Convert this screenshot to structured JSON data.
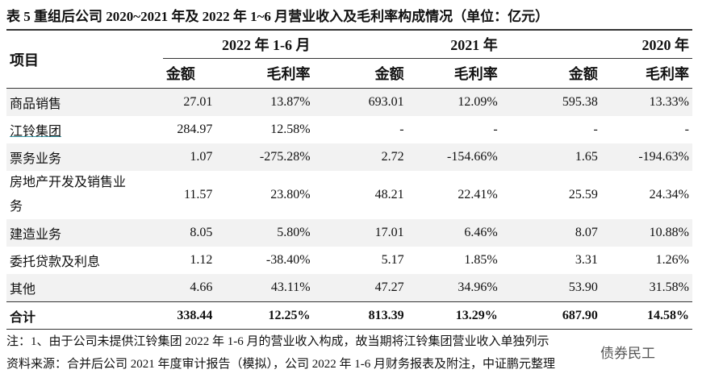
{
  "title": "表 5 重组后公司 2020~2021 年及 2022 年 1~6 月营业收入及毛利率构成情况（单位：亿元）",
  "header": {
    "item": "项目",
    "groups": [
      "2022 年 1-6 月",
      "2021 年",
      "2020 年"
    ],
    "subheaders": [
      "金额",
      "毛利率",
      "金额",
      "毛利率",
      "金额",
      "毛利率"
    ]
  },
  "rows": [
    [
      "商品销售",
      "27.01",
      "13.87%",
      "693.01",
      "12.09%",
      "595.38",
      "13.33%"
    ],
    [
      "江铃集团",
      "284.97",
      "12.58%",
      "-",
      "-",
      "-",
      "-"
    ],
    [
      "票务业务",
      "1.07",
      "-275.28%",
      "2.72",
      "-154.66%",
      "1.65",
      "-194.63%"
    ],
    [
      "房地产开发及销售业务",
      "11.57",
      "23.80%",
      "48.21",
      "22.41%",
      "25.59",
      "24.34%"
    ],
    [
      "建造业务",
      "8.05",
      "5.80%",
      "17.01",
      "6.46%",
      "8.07",
      "10.88%"
    ],
    [
      "委托贷款及利息",
      "1.12",
      "-38.40%",
      "5.17",
      "1.85%",
      "3.31",
      "1.26%"
    ],
    [
      "其他",
      "4.66",
      "43.11%",
      "47.27",
      "34.96%",
      "53.90",
      "31.58%"
    ]
  ],
  "total": [
    "合计",
    "338.44",
    "12.25%",
    "813.39",
    "13.29%",
    "687.90",
    "14.58%"
  ],
  "notes": [
    "注：1、由于公司未提供江铃集团 2022 年 1-6 月的营业收入构成，故当期将江铃集团营业收入单独列示",
    "资料来源：合并后公司 2021 年度审计报告（模拟），公司 2022 年 1-6 月财务报表及附注，中证鹏元整理"
  ],
  "watermark": "债券民工"
}
